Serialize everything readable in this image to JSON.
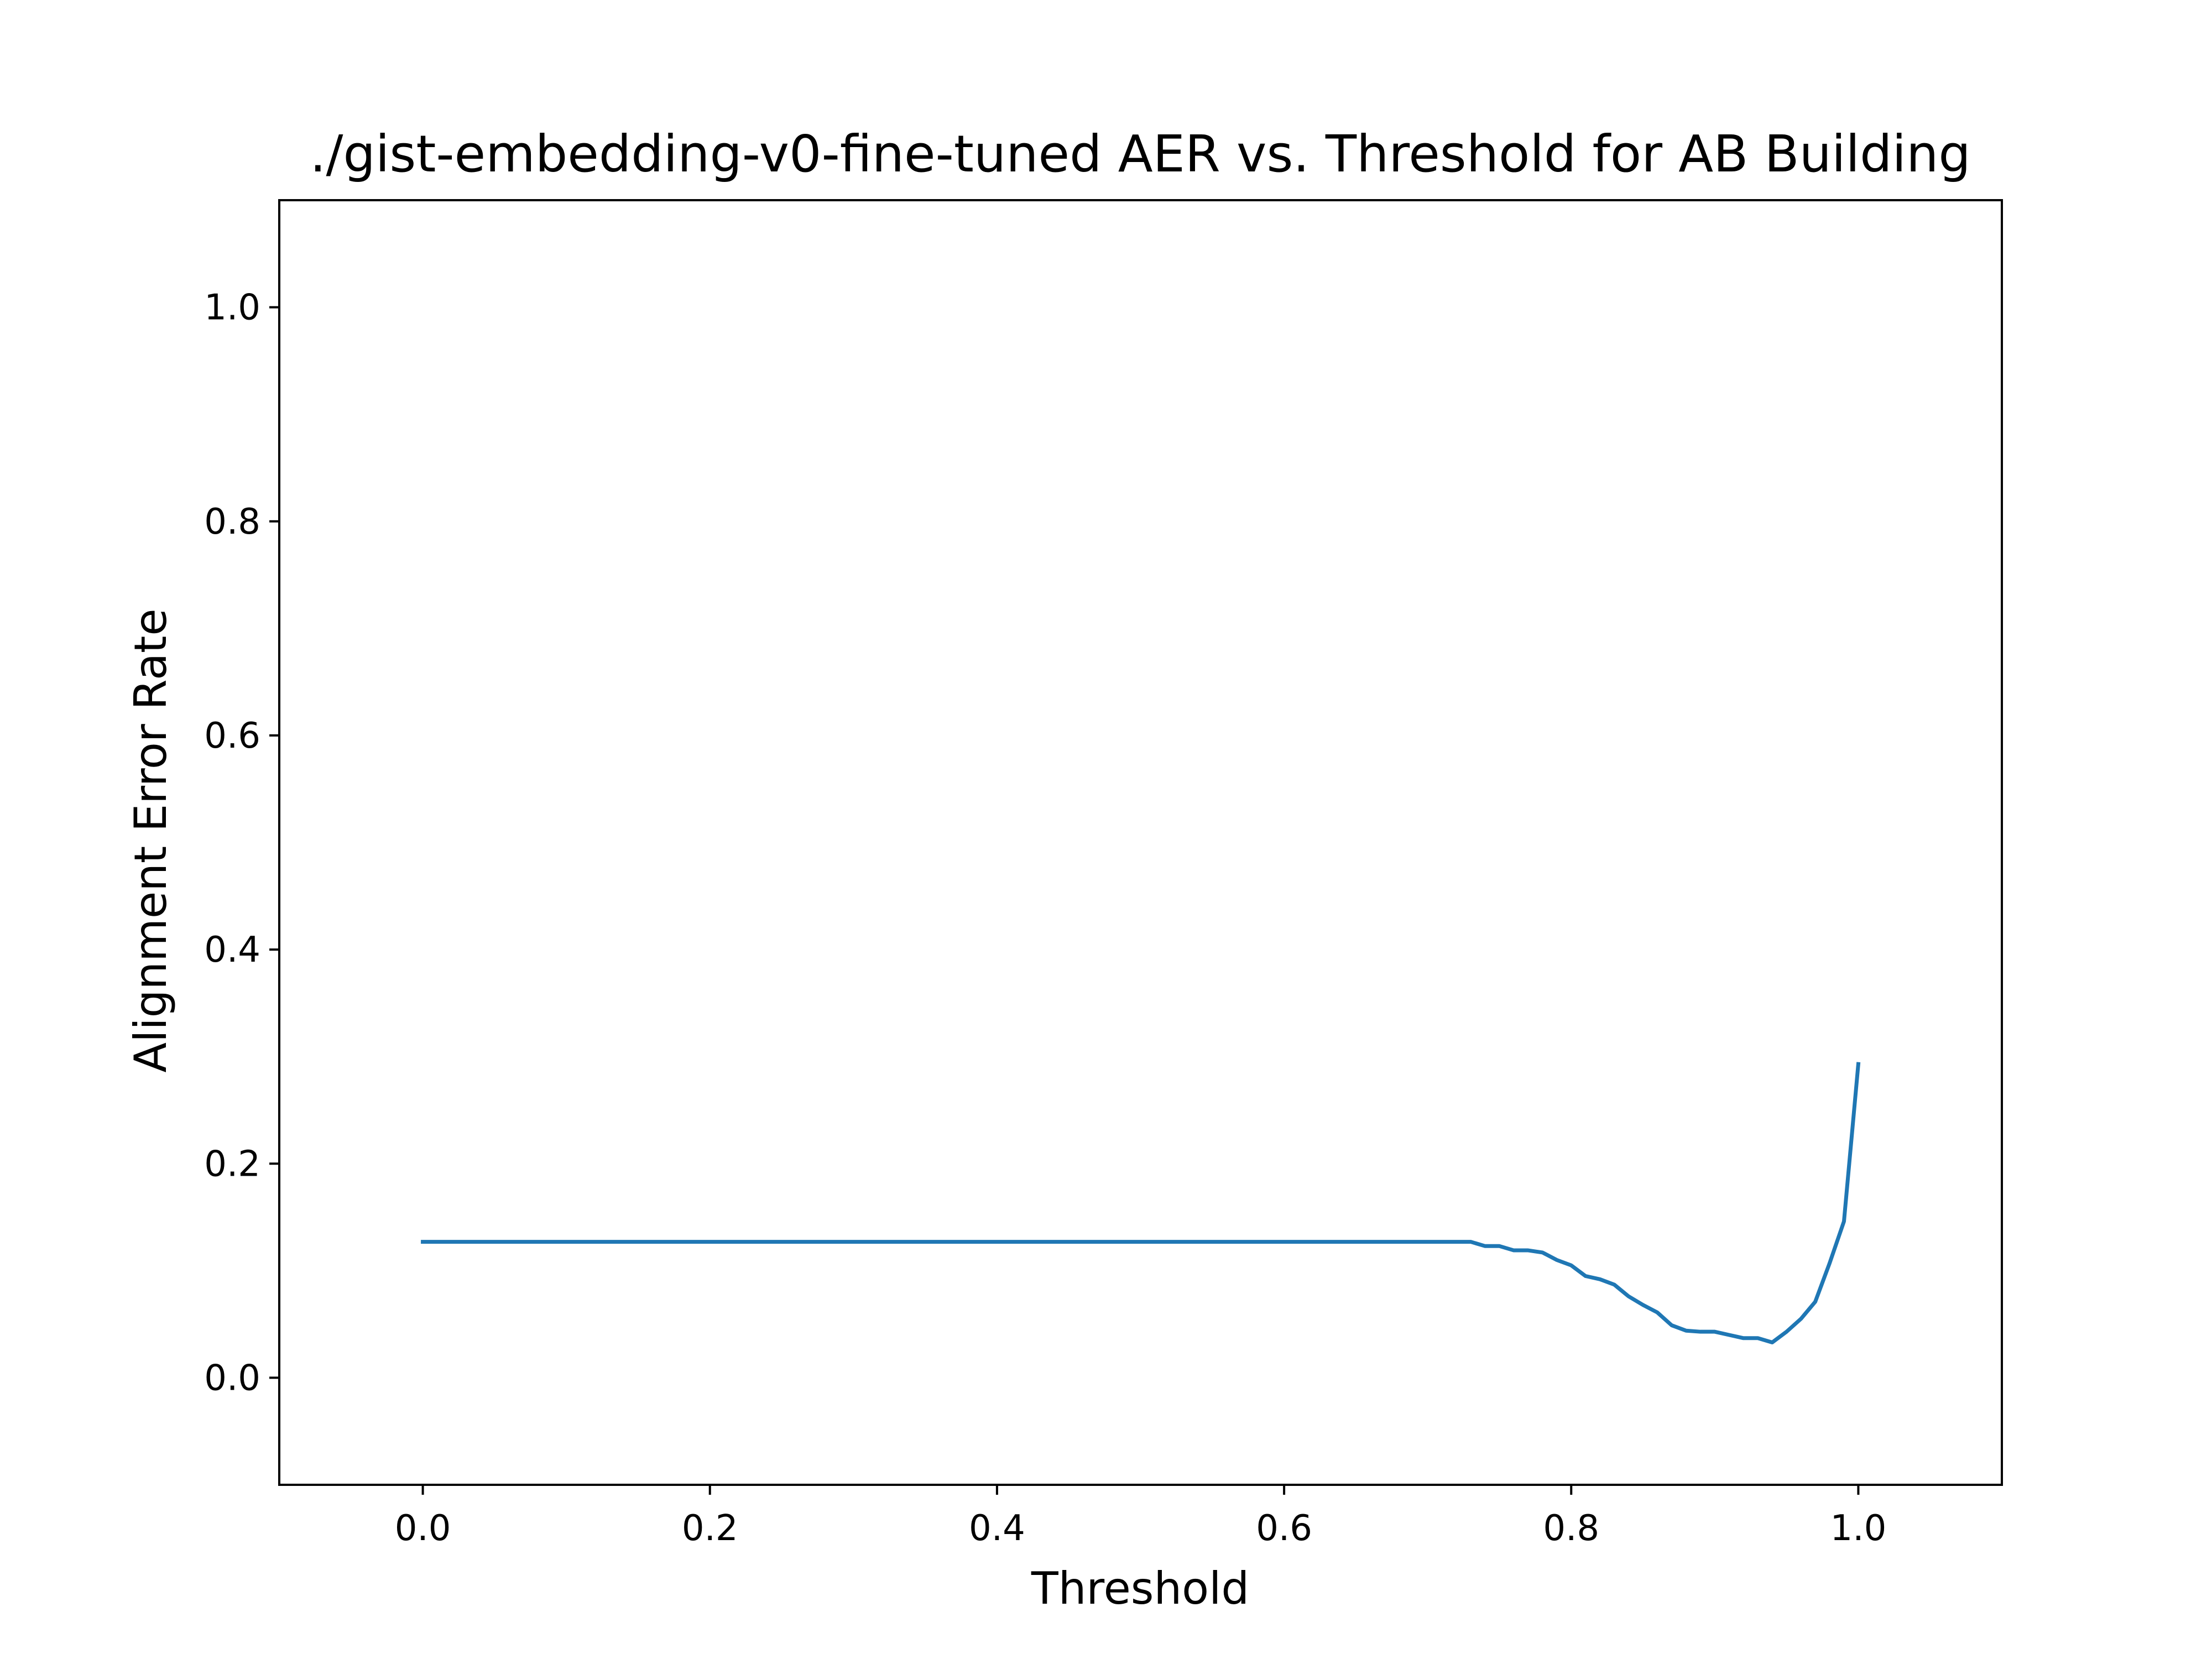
{
  "chart_data": {
    "type": "line",
    "title": "./gist-embedding-v0-fine-tuned AER vs. Threshold for AB Building",
    "xlabel": "Threshold",
    "ylabel": "Alignment Error Rate",
    "xlim": [
      -0.1,
      1.1
    ],
    "ylim": [
      -0.1,
      1.1
    ],
    "xticks": [
      0.0,
      0.2,
      0.4,
      0.6,
      0.8,
      1.0
    ],
    "xtick_labels": [
      "0.0",
      "0.2",
      "0.4",
      "0.6",
      "0.8",
      "1.0"
    ],
    "yticks": [
      0.0,
      0.2,
      0.4,
      0.6,
      0.8,
      1.0
    ],
    "ytick_labels": [
      "0.0",
      "0.2",
      "0.4",
      "0.6",
      "0.8",
      "1.0"
    ],
    "grid": false,
    "series": [
      {
        "color": "#1f77b4",
        "x": [
          0.0,
          0.73,
          0.74,
          0.75,
          0.76,
          0.77,
          0.78,
          0.79,
          0.8,
          0.81,
          0.82,
          0.83,
          0.84,
          0.85,
          0.86,
          0.87,
          0.88,
          0.89,
          0.9,
          0.91,
          0.92,
          0.93,
          0.94,
          0.95,
          0.96,
          0.97,
          0.98,
          0.99,
          1.0
        ],
        "y": [
          0.127,
          0.127,
          0.123,
          0.123,
          0.119,
          0.119,
          0.117,
          0.11,
          0.105,
          0.095,
          0.092,
          0.087,
          0.076,
          0.068,
          0.061,
          0.049,
          0.044,
          0.043,
          0.043,
          0.04,
          0.037,
          0.037,
          0.033,
          0.043,
          0.055,
          0.071,
          0.107,
          0.146,
          0.293
        ]
      }
    ]
  }
}
